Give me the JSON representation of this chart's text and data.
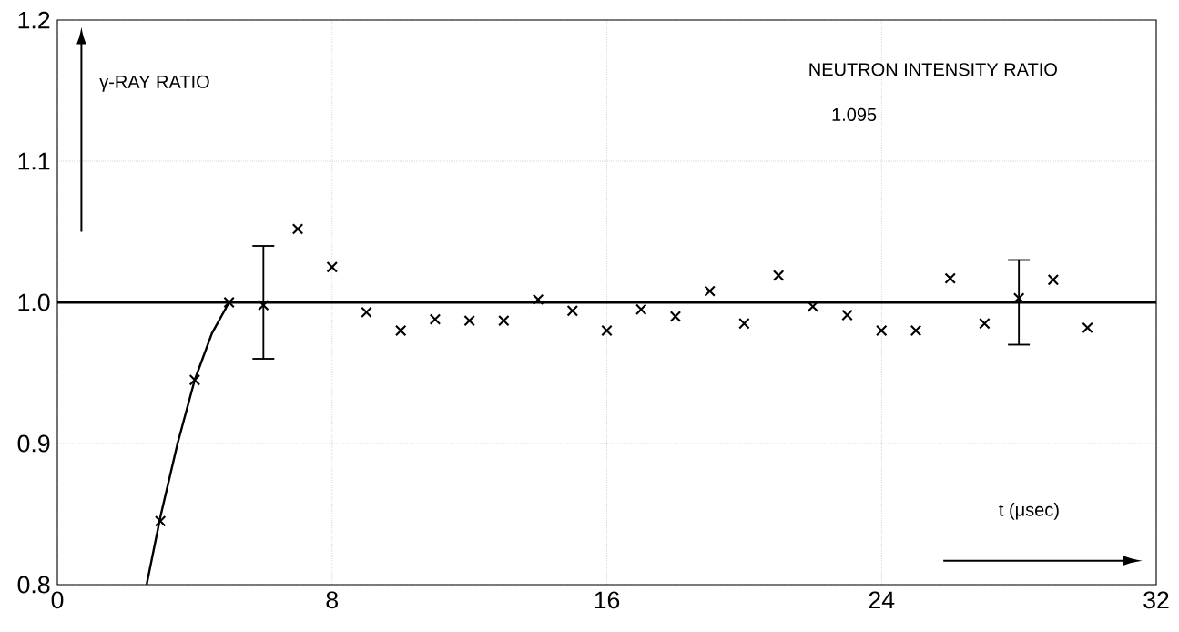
{
  "chart_data": {
    "type": "scatter",
    "ylabel": "γ-RAY RATIO",
    "xlabel": "t (μsec)",
    "annotations": [
      {
        "text": "NEUTRON INTENSITY RATIO"
      },
      {
        "text": "1.095"
      }
    ],
    "series": [
      {
        "color": "#000000",
        "marker": "cross",
        "x": [
          3,
          4,
          5,
          6,
          7,
          8,
          9,
          10,
          11,
          12,
          13,
          14,
          15,
          16,
          17,
          18,
          19,
          20,
          21,
          22,
          23,
          24,
          25,
          26,
          27,
          28,
          29,
          30
        ],
        "values": [
          0.845,
          0.945,
          1.0,
          0.998,
          1.052,
          1.025,
          0.993,
          0.98,
          0.988,
          0.987,
          0.987,
          1.002,
          0.994,
          0.98,
          0.995,
          0.99,
          1.008,
          0.985,
          1.019,
          0.997,
          0.991,
          0.98,
          0.98,
          1.017,
          0.985,
          1.003,
          1.016,
          0.982
        ],
        "errors": [
          null,
          null,
          null,
          [
            0.96,
            1.04
          ],
          null,
          null,
          null,
          null,
          null,
          null,
          null,
          null,
          null,
          null,
          null,
          null,
          null,
          null,
          null,
          null,
          null,
          null,
          null,
          null,
          null,
          [
            0.97,
            1.03
          ],
          null,
          null
        ]
      },
      {
        "type": "line",
        "color": "#000000",
        "marker": "none",
        "x": [
          2.6,
          3,
          3.5,
          4,
          4.5,
          5
        ],
        "values": [
          0.8,
          0.848,
          0.9,
          0.945,
          0.978,
          1.0
        ]
      }
    ],
    "ref_lines": [
      {
        "axis": "y",
        "value": 1.0,
        "color": "#000000"
      }
    ],
    "xlim": [
      0,
      32
    ],
    "xticks": [
      0,
      8,
      16,
      24,
      32
    ],
    "ylim": [
      0.8,
      1.2
    ],
    "yticks": [
      {
        "value": 0.8,
        "label": "0.8"
      },
      {
        "value": 0.9,
        "label": "0.9"
      },
      {
        "value": 1.0,
        "label": "1.0"
      },
      {
        "value": 1.1,
        "label": "1.1"
      },
      {
        "value": 1.2,
        "label": "1.2"
      }
    ],
    "grid": true
  }
}
